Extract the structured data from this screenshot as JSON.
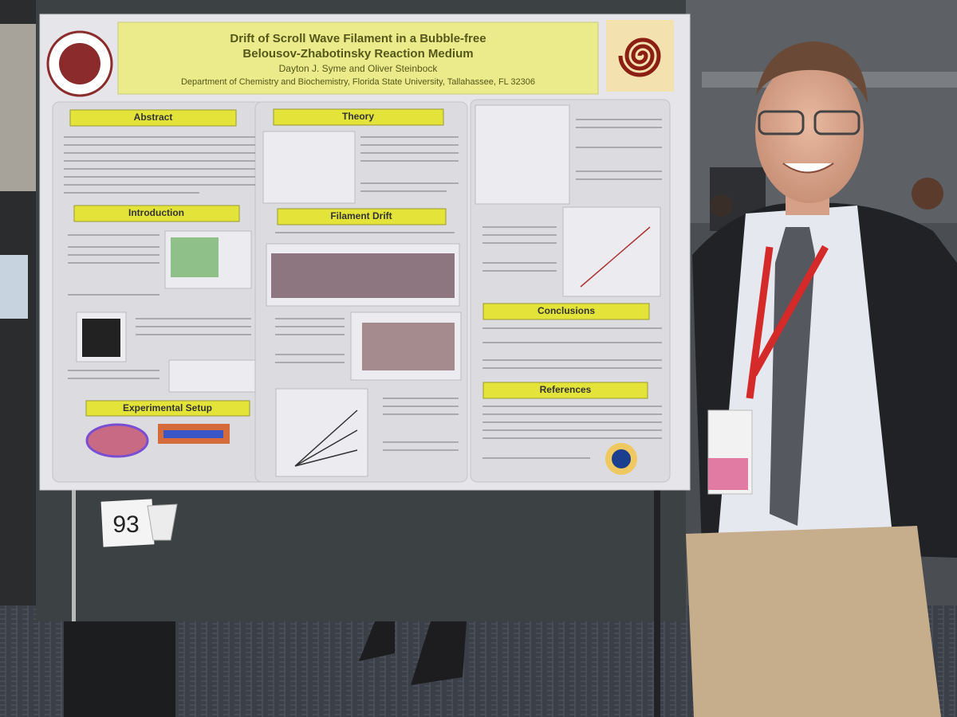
{
  "poster": {
    "title": [
      "Drift of Scroll Wave Filament in a Bubble-free",
      "Belousov-Zhabotinsky Reaction Medium"
    ],
    "authors": "Dayton J. Syme and Oliver Steinbock",
    "affiliation": "Department of Chemistry and Biochemistry, Florida State University, Tallahassee, FL 32306",
    "sections": [
      "Abstract",
      "Theory",
      "Introduction",
      "Filament Drift",
      "Experimental Setup",
      "Conclusions",
      "References"
    ]
  },
  "sign": {
    "number": "93"
  }
}
